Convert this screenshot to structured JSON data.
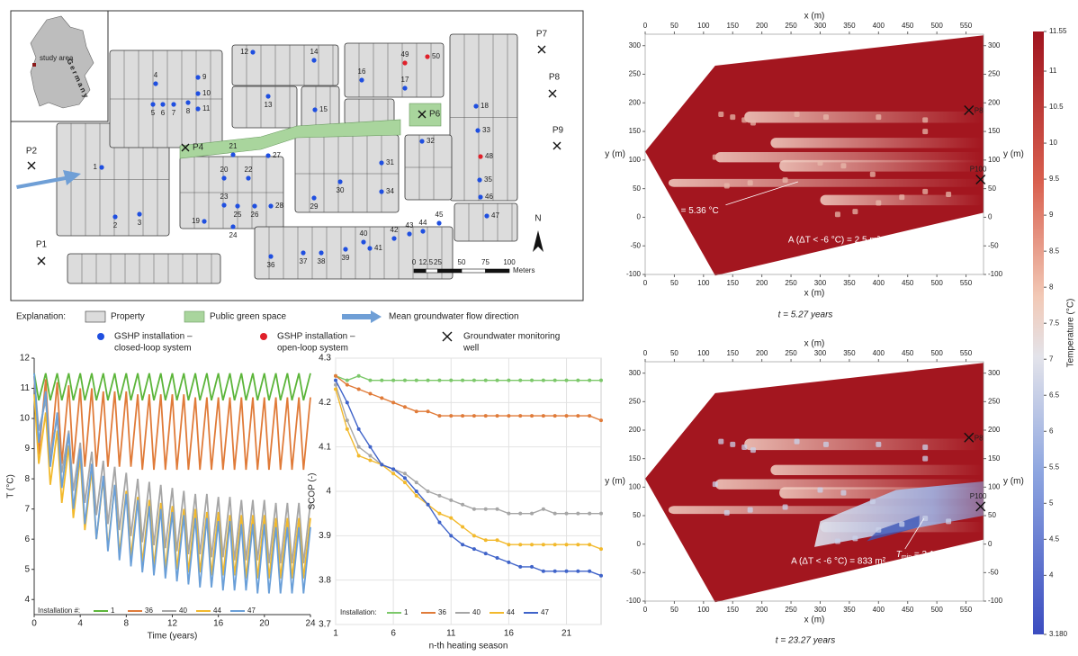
{
  "map": {
    "inset": {
      "label": "study area",
      "country": "Germany"
    },
    "installations": [
      {
        "id": "1",
        "system": "closed"
      },
      {
        "id": "2",
        "system": "closed"
      },
      {
        "id": "3",
        "system": "closed"
      },
      {
        "id": "4",
        "system": "closed"
      },
      {
        "id": "5",
        "system": "closed"
      },
      {
        "id": "6",
        "system": "closed"
      },
      {
        "id": "7",
        "system": "closed"
      },
      {
        "id": "8",
        "system": "closed"
      },
      {
        "id": "9",
        "system": "closed"
      },
      {
        "id": "10",
        "system": "closed"
      },
      {
        "id": "11",
        "system": "closed"
      },
      {
        "id": "12",
        "system": "closed"
      },
      {
        "id": "13",
        "system": "closed"
      },
      {
        "id": "14",
        "system": "closed"
      },
      {
        "id": "15",
        "system": "closed"
      },
      {
        "id": "16",
        "system": "closed"
      },
      {
        "id": "17",
        "system": "closed"
      },
      {
        "id": "18",
        "system": "closed"
      },
      {
        "id": "19",
        "system": "closed"
      },
      {
        "id": "20",
        "system": "closed"
      },
      {
        "id": "21",
        "system": "closed"
      },
      {
        "id": "22",
        "system": "closed"
      },
      {
        "id": "23",
        "system": "closed"
      },
      {
        "id": "24",
        "system": "closed"
      },
      {
        "id": "25",
        "system": "closed"
      },
      {
        "id": "26",
        "system": "closed"
      },
      {
        "id": "27",
        "system": "closed"
      },
      {
        "id": "28",
        "system": "closed"
      },
      {
        "id": "29",
        "system": "closed"
      },
      {
        "id": "30",
        "system": "closed"
      },
      {
        "id": "31",
        "system": "closed"
      },
      {
        "id": "32",
        "system": "closed"
      },
      {
        "id": "33",
        "system": "closed"
      },
      {
        "id": "34",
        "system": "closed"
      },
      {
        "id": "35",
        "system": "closed"
      },
      {
        "id": "36",
        "system": "closed"
      },
      {
        "id": "37",
        "system": "closed"
      },
      {
        "id": "38",
        "system": "closed"
      },
      {
        "id": "39",
        "system": "closed"
      },
      {
        "id": "40",
        "system": "closed"
      },
      {
        "id": "41",
        "system": "closed"
      },
      {
        "id": "42",
        "system": "closed"
      },
      {
        "id": "43",
        "system": "closed"
      },
      {
        "id": "44",
        "system": "closed"
      },
      {
        "id": "45",
        "system": "closed"
      },
      {
        "id": "46",
        "system": "closed"
      },
      {
        "id": "47",
        "system": "closed"
      },
      {
        "id": "48",
        "system": "open"
      },
      {
        "id": "49",
        "system": "open"
      },
      {
        "id": "50",
        "system": "open"
      }
    ],
    "system_colors": {
      "closed": "#1f4fe0",
      "open": "#e0202a"
    },
    "wells": [
      "P1",
      "P2",
      "P4",
      "P6",
      "P7",
      "P8",
      "P9"
    ],
    "scale": {
      "ticks": [
        0,
        12.5,
        25,
        50,
        75,
        100
      ],
      "unit": "Meters"
    },
    "north": "N"
  },
  "explanation": {
    "title": "Explanation:",
    "items": [
      {
        "lines": [
          "Property"
        ]
      },
      {
        "lines": [
          "Public green space"
        ]
      },
      {
        "lines": [
          "Mean groundwater flow direction"
        ]
      },
      {
        "lines": [
          "GSHP installation –",
          "closed-loop system"
        ]
      },
      {
        "lines": [
          "GSHP installation –",
          "open-loop system"
        ]
      },
      {
        "lines": [
          "Groundwater monitoring",
          "well"
        ]
      }
    ]
  },
  "chart_data": [
    {
      "type": "line",
      "ylabel": "T (°C)",
      "xlabel": "Time (years)",
      "legend_title": "Installation #:",
      "grid": false,
      "x": [
        0,
        0.4,
        1,
        1.4,
        2,
        2.4,
        3,
        3.4,
        4,
        4.4,
        5,
        5.4,
        6,
        6.4,
        7,
        7.4,
        8,
        8.4,
        9,
        9.4,
        10,
        10.4,
        11,
        11.4,
        12,
        12.4,
        13,
        13.4,
        14,
        14.4,
        15,
        15.4,
        16,
        16.4,
        17,
        17.4,
        18,
        18.4,
        19,
        19.4,
        20,
        20.4,
        21,
        21.4,
        22,
        22.4,
        23,
        23.4,
        24
      ],
      "xlim": [
        0,
        24
      ],
      "xticks": [
        0,
        4,
        8,
        12,
        16,
        20,
        24
      ],
      "ylim": [
        3.5,
        12
      ],
      "yticks": [
        4,
        5,
        6,
        7,
        8,
        9,
        10,
        11,
        12
      ],
      "series": [
        {
          "name": "1",
          "color": "#5cb53a",
          "values": [
            11.5,
            10.6,
            11.5,
            10.6,
            11.5,
            10.6,
            11.5,
            10.6,
            11.5,
            10.6,
            11.5,
            10.6,
            11.5,
            10.6,
            11.5,
            10.6,
            11.5,
            10.6,
            11.5,
            10.6,
            11.5,
            10.6,
            11.5,
            10.6,
            11.5,
            10.6,
            11.5,
            10.6,
            11.5,
            10.6,
            11.5,
            10.6,
            11.5,
            10.6,
            11.5,
            10.6,
            11.5,
            10.6,
            11.5,
            10.6,
            11.5,
            10.6,
            11.5,
            10.6,
            11.5,
            10.6,
            11.5,
            10.6,
            11.5
          ]
        },
        {
          "name": "36",
          "color": "#e07b39",
          "values": [
            11.4,
            8.8,
            11.3,
            8.6,
            11.2,
            8.5,
            11.1,
            8.5,
            11.0,
            8.4,
            11.0,
            8.4,
            10.9,
            8.4,
            10.9,
            8.4,
            10.9,
            8.4,
            10.8,
            8.3,
            10.8,
            8.3,
            10.8,
            8.3,
            10.8,
            8.3,
            10.8,
            8.3,
            10.7,
            8.3,
            10.7,
            8.3,
            10.7,
            8.3,
            10.7,
            8.3,
            10.7,
            8.3,
            10.7,
            8.3,
            10.7,
            8.3,
            10.7,
            8.3,
            10.7,
            8.3,
            10.7,
            8.3,
            10.7
          ]
        },
        {
          "name": "40",
          "color": "#a6a6a6",
          "values": [
            11.4,
            9.6,
            10.6,
            8.8,
            10.0,
            8.2,
            9.6,
            7.6,
            9.2,
            7.2,
            8.9,
            6.8,
            8.6,
            6.5,
            8.4,
            6.3,
            8.2,
            6.1,
            8.0,
            5.9,
            7.9,
            5.8,
            7.8,
            5.7,
            7.7,
            5.6,
            7.6,
            5.5,
            7.5,
            5.5,
            7.5,
            5.4,
            7.4,
            5.4,
            7.4,
            5.3,
            7.3,
            5.3,
            7.3,
            5.3,
            7.3,
            5.2,
            7.2,
            5.2,
            7.2,
            5.2,
            7.2,
            5.2,
            7.2
          ]
        },
        {
          "name": "44",
          "color": "#f2b92c",
          "values": [
            10.8,
            8.5,
            10.2,
            7.8,
            9.6,
            7.2,
            9.1,
            6.7,
            8.7,
            6.3,
            8.3,
            6.0,
            8.0,
            5.7,
            7.8,
            5.5,
            7.6,
            5.4,
            7.4,
            5.2,
            7.3,
            5.1,
            7.2,
            5.0,
            7.1,
            5.0,
            7.0,
            4.9,
            7.0,
            4.9,
            6.9,
            4.8,
            6.9,
            4.8,
            6.8,
            4.8,
            6.8,
            4.7,
            6.8,
            4.7,
            6.8,
            4.7,
            6.7,
            4.7,
            6.7,
            4.7,
            6.7,
            4.7,
            6.7
          ]
        },
        {
          "name": "47",
          "color": "#6a9fd8",
          "values": [
            11.5,
            9.2,
            10.9,
            8.4,
            10.2,
            7.7,
            9.5,
            7.0,
            9.0,
            6.5,
            8.5,
            6.0,
            8.1,
            5.6,
            7.8,
            5.3,
            7.5,
            5.1,
            7.3,
            4.9,
            7.1,
            4.8,
            7.0,
            4.7,
            6.9,
            4.6,
            6.8,
            4.5,
            6.7,
            4.4,
            6.7,
            4.4,
            6.6,
            4.3,
            6.6,
            4.3,
            6.5,
            4.3,
            6.5,
            4.2,
            6.5,
            4.2,
            6.4,
            4.2,
            6.4,
            4.2,
            6.4,
            4.2,
            6.4
          ]
        }
      ]
    },
    {
      "type": "line",
      "ylabel": "SCOP (-)",
      "xlabel": "n-th heating season",
      "legend_title": "Installation:",
      "grid": true,
      "markers": true,
      "x": [
        1,
        2,
        3,
        4,
        5,
        6,
        7,
        8,
        9,
        10,
        11,
        12,
        13,
        14,
        15,
        16,
        17,
        18,
        19,
        20,
        21,
        22,
        23,
        24
      ],
      "xlim": [
        1,
        24
      ],
      "xticks": [
        1,
        6,
        11,
        16,
        21
      ],
      "ylim": [
        3.7,
        4.3
      ],
      "yticks": [
        3.7,
        3.8,
        3.9,
        4,
        4.1,
        4.2,
        4.3
      ],
      "series": [
        {
          "name": "1",
          "color": "#7cc86a",
          "values": [
            4.26,
            4.25,
            4.26,
            4.25,
            4.25,
            4.25,
            4.25,
            4.25,
            4.25,
            4.25,
            4.25,
            4.25,
            4.25,
            4.25,
            4.25,
            4.25,
            4.25,
            4.25,
            4.25,
            4.25,
            4.25,
            4.25,
            4.25,
            4.25
          ]
        },
        {
          "name": "36",
          "color": "#e07b39",
          "values": [
            4.26,
            4.24,
            4.23,
            4.22,
            4.21,
            4.2,
            4.19,
            4.18,
            4.18,
            4.17,
            4.17,
            4.17,
            4.17,
            4.17,
            4.17,
            4.17,
            4.17,
            4.17,
            4.17,
            4.17,
            4.17,
            4.17,
            4.17,
            4.16
          ]
        },
        {
          "name": "40",
          "color": "#a6a6a6",
          "values": [
            4.24,
            4.16,
            4.1,
            4.08,
            4.06,
            4.05,
            4.04,
            4.02,
            4.0,
            3.99,
            3.98,
            3.97,
            3.96,
            3.96,
            3.96,
            3.95,
            3.95,
            3.95,
            3.96,
            3.95,
            3.95,
            3.95,
            3.95,
            3.95
          ]
        },
        {
          "name": "44",
          "color": "#f2b92c",
          "values": [
            4.23,
            4.14,
            4.08,
            4.07,
            4.06,
            4.04,
            4.02,
            3.99,
            3.97,
            3.95,
            3.94,
            3.92,
            3.9,
            3.89,
            3.89,
            3.88,
            3.88,
            3.88,
            3.88,
            3.88,
            3.88,
            3.88,
            3.88,
            3.87
          ]
        },
        {
          "name": "47",
          "color": "#3f63c9",
          "values": [
            4.25,
            4.2,
            4.14,
            4.1,
            4.06,
            4.05,
            4.03,
            4.0,
            3.97,
            3.93,
            3.9,
            3.88,
            3.87,
            3.86,
            3.85,
            3.84,
            3.83,
            3.83,
            3.82,
            3.82,
            3.82,
            3.82,
            3.82,
            3.81
          ]
        }
      ]
    },
    {
      "type": "heatmap",
      "caption": "t = 5.27 years",
      "xlabel": "x (m)",
      "ylabel": "y (m)",
      "xlim": [
        0,
        580
      ],
      "xticks": [
        0,
        50,
        100,
        150,
        200,
        250,
        300,
        350,
        400,
        450,
        500,
        550
      ],
      "ylim": [
        -100,
        320
      ],
      "yticks": [
        -100,
        -50,
        0,
        50,
        100,
        150,
        200,
        250,
        300
      ],
      "tmin": {
        "symbol": "T",
        "subscript": "min",
        "text": " = 5.36 °C"
      },
      "area": "A (ΔT < -6 °C) = 2.5 m²",
      "wells": [
        "P8",
        "P100"
      ]
    },
    {
      "type": "heatmap",
      "caption": "t = 23.27 years",
      "xlabel": "x (m)",
      "ylabel": "y (m)",
      "xlim": [
        0,
        580
      ],
      "xticks": [
        0,
        50,
        100,
        150,
        200,
        250,
        300,
        350,
        400,
        450,
        500,
        550
      ],
      "ylim": [
        -100,
        320
      ],
      "yticks": [
        -100,
        -50,
        0,
        50,
        100,
        150,
        200,
        250,
        300
      ],
      "tmin": {
        "symbol": "T",
        "subscript": "min",
        "text": " = 3.18 °C"
      },
      "area": "A (ΔT < -6 °C) = 833 m²",
      "wells": [
        "P8",
        "P100"
      ]
    }
  ],
  "colorbar": {
    "label": "Temperature (°C)",
    "lim": [
      3.18,
      11.55
    ],
    "ticks": [
      {
        "value": 3.18,
        "label": "3.180"
      },
      4,
      4.5,
      5,
      5.5,
      6,
      6.5,
      7,
      7.5,
      8,
      8.5,
      9,
      9.5,
      10,
      10.5,
      11,
      11.55
    ]
  }
}
